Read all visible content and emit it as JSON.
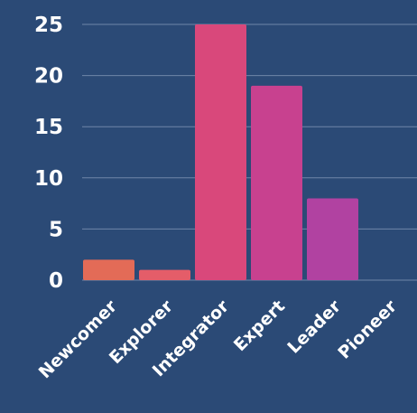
{
  "chart_data": {
    "type": "bar",
    "categories": [
      "Newcomer",
      "Explorer",
      "Integrator",
      "Expert",
      "Leader",
      "Pioneer"
    ],
    "values": [
      2,
      1,
      25,
      19,
      8,
      0
    ],
    "ylim": [
      0,
      25
    ],
    "yticks": [
      0,
      5,
      10,
      15,
      20,
      25
    ],
    "grid": true,
    "legend": "none",
    "colors": {
      "background": "#2b4a76",
      "gridline": "#6f86a8",
      "text": "#ffffff",
      "bars": [
        "#e36b57",
        "#e45d69",
        "#d9487b",
        "#c8418f",
        "#b142a1",
        "#9a44ab"
      ]
    }
  }
}
